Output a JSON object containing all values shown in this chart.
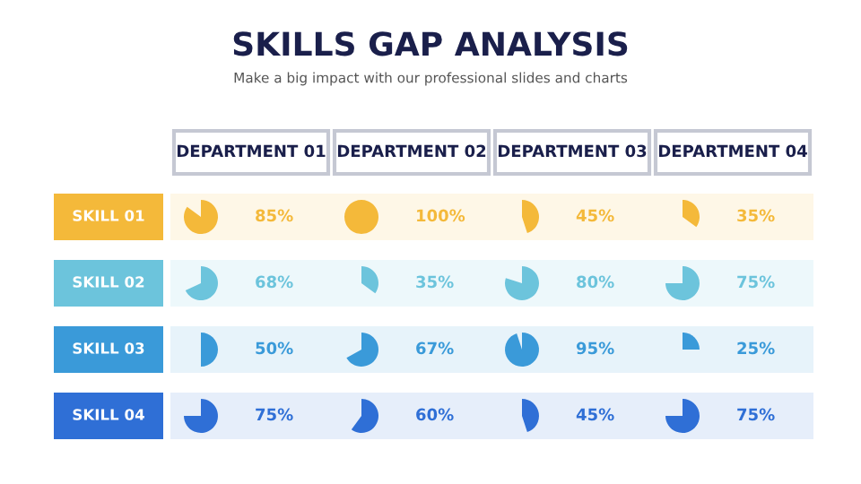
{
  "chart_data": {
    "type": "heatmap",
    "title": "SKILLS GAP ANALYSIS",
    "subtitle": "Make a big impact with our professional slides and charts",
    "categories": [
      "DEPARTMENT 01",
      "DEPARTMENT 02",
      "DEPARTMENT 03",
      "DEPARTMENT 04"
    ],
    "y_categories": [
      "SKILL 01",
      "SKILL 02",
      "SKILL 03",
      "SKILL 04"
    ],
    "colors": [
      "#f4b93a",
      "#6cc4dc",
      "#3a9ad9",
      "#2f6fd6"
    ],
    "cells": [
      [
        85,
        100,
        45,
        35
      ],
      [
        68,
        35,
        80,
        75
      ],
      [
        50,
        67,
        95,
        25
      ],
      [
        75,
        60,
        45,
        75
      ]
    ],
    "cell_labels": [
      [
        "85%",
        "100%",
        "45%",
        "35%"
      ],
      [
        "68%",
        "35%",
        "80%",
        "75%"
      ],
      [
        "50%",
        "67%",
        "95%",
        "25%"
      ],
      [
        "75%",
        "60%",
        "45%",
        "75%"
      ]
    ]
  }
}
